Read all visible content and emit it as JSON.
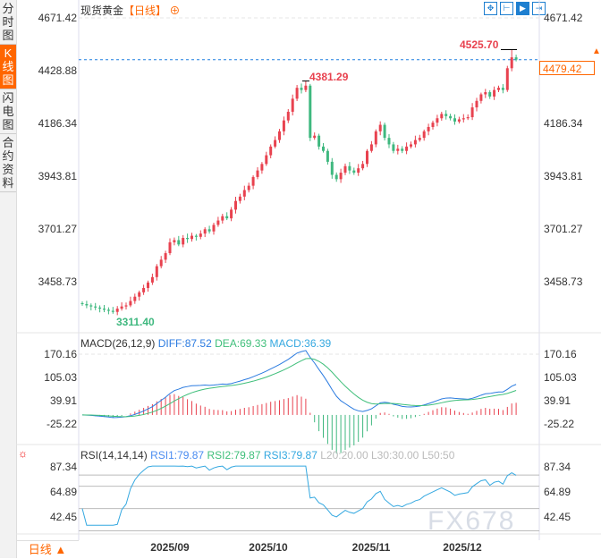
{
  "tabs": [
    "分时图",
    "K线图",
    "闪电图",
    "合约资料"
  ],
  "active_tab": 1,
  "header": {
    "instrument": "现货黄金",
    "period": "【日线】",
    "add_icon": "plus-circle-icon"
  },
  "toolbar": [
    "crosshair-icon",
    "range-icon",
    "zoom-chart-icon",
    "move-right-icon"
  ],
  "period_selector": "日线 ▲",
  "watermark": "FX678",
  "colors": {
    "up": "#e8424f",
    "down": "#3fb87f",
    "diff": "#2b7be0",
    "dea": "#3fbf7a",
    "rsi": "#34a8e0",
    "accent": "#ff6600"
  },
  "chart_data": {
    "type": "candlestick",
    "x_ticks": [
      "2025/09",
      "2025/10",
      "2025/11",
      "2025/12"
    ],
    "price_axis": [
      "4671.42",
      "4428.88",
      "4186.34",
      "3943.81",
      "3701.27",
      "3458.73"
    ],
    "annotations": {
      "high": "4381.29",
      "low": "3311.40",
      "recent_high": "4525.70",
      "current": "4479.42"
    },
    "close": [
      3356,
      3350,
      3345,
      3340,
      3335,
      3330,
      3325,
      3320,
      3335,
      3345,
      3350,
      3370,
      3390,
      3410,
      3430,
      3455,
      3480,
      3530,
      3560,
      3590,
      3640,
      3650,
      3630,
      3660,
      3655,
      3670,
      3665,
      3680,
      3700,
      3690,
      3720,
      3740,
      3760,
      3750,
      3790,
      3830,
      3850,
      3880,
      3900,
      3940,
      3970,
      4000,
      4040,
      4080,
      4110,
      4150,
      4200,
      4240,
      4300,
      4350,
      4340,
      4360,
      4120,
      4130,
      4080,
      4060,
      4010,
      3950,
      3930,
      3960,
      3990,
      3970,
      3960,
      3980,
      4000,
      4060,
      4090,
      4150,
      4180,
      4120,
      4090,
      4060,
      4070,
      4060,
      4080,
      4090,
      4110,
      4120,
      4150,
      4170,
      4190,
      4210,
      4230,
      4220,
      4210,
      4195,
      4205,
      4210,
      4215,
      4260,
      4290,
      4320,
      4330,
      4310,
      4340,
      4350,
      4340,
      4440,
      4490,
      4479.42
    ],
    "macd": {
      "label": "MACD(26,12,9)",
      "diff": "DIFF:87.52",
      "dea": "DEA:69.33",
      "macd": "MACD:36.39",
      "axis": [
        "170.16",
        "105.03",
        "39.91",
        "-25.22"
      ]
    },
    "rsi": {
      "label": "RSI(14,14,14)",
      "rsi1": "RSI1:79.87",
      "rsi2": "RSI2:79.87",
      "rsi3": "RSI3:79.87",
      "l20": "L20:20.00",
      "l30": "L30:30.00",
      "l50": "L50:50",
      "axis": [
        "87.34",
        "64.89",
        "42.45"
      ],
      "levels": [
        80,
        70,
        50,
        30
      ]
    }
  }
}
